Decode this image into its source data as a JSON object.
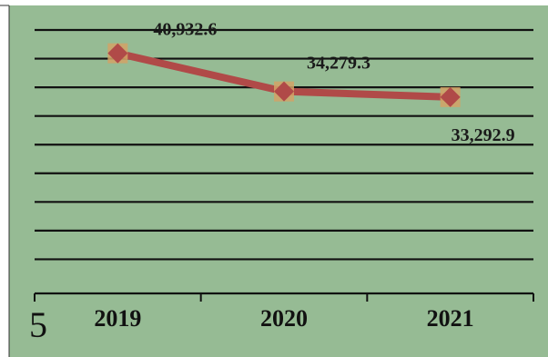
{
  "chart_data": {
    "type": "line",
    "categories": [
      "2019",
      "2020",
      "2021"
    ],
    "series": [
      {
        "values": [
          40932.6,
          34279.3,
          33292.9
        ]
      }
    ],
    "data_labels": [
      "40,932.6",
      "34,279.3",
      "33,292.9"
    ],
    "title": "",
    "xlabel": "",
    "ylabel": "",
    "ylim": [
      0,
      45000
    ],
    "grid": true,
    "legend": "none"
  },
  "corner_text": "5",
  "colors": {
    "plot_background": "#96bb94",
    "line": "#b04a48",
    "marker_fill": "#b04a48",
    "marker_halo": "#d3a266",
    "gridline": "#111111"
  }
}
